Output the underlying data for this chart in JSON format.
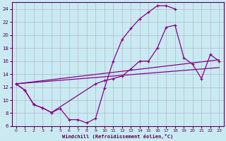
{
  "xlabel": "Windchill (Refroidissement éolien,°C)",
  "bg_color": "#caeaf2",
  "grid_color": "#b0b8cc",
  "line_color": "#880088",
  "xlim": [
    -0.5,
    23.5
  ],
  "ylim": [
    6,
    25
  ],
  "xticks": [
    0,
    1,
    2,
    3,
    4,
    5,
    6,
    7,
    8,
    9,
    10,
    11,
    12,
    13,
    14,
    15,
    16,
    17,
    18,
    19,
    20,
    21,
    22,
    23
  ],
  "yticks": [
    6,
    8,
    10,
    12,
    14,
    16,
    18,
    20,
    22,
    24
  ],
  "curve1_x": [
    0,
    1,
    2,
    3,
    4,
    5,
    6,
    7,
    8,
    9,
    10,
    11,
    12,
    13,
    14,
    15,
    16,
    17,
    18
  ],
  "curve1_y": [
    12.5,
    11.5,
    9.3,
    8.8,
    8.1,
    8.7,
    7.0,
    7.0,
    6.5,
    7.2,
    11.8,
    16.0,
    19.3,
    21.0,
    22.5,
    23.5,
    24.5,
    24.5,
    24.0
  ],
  "curve2_x": [
    0,
    1,
    2,
    3,
    4,
    9,
    10,
    11,
    12,
    13,
    14,
    15,
    16,
    17,
    18,
    19,
    20,
    21,
    22,
    23
  ],
  "curve2_y": [
    12.5,
    11.5,
    9.3,
    8.8,
    8.1,
    12.5,
    13.0,
    13.3,
    13.7,
    14.8,
    16.0,
    16.0,
    18.0,
    21.2,
    21.5,
    16.5,
    15.5,
    13.3,
    17.0,
    16.0
  ],
  "line1_x": [
    0,
    23
  ],
  "line1_y": [
    12.5,
    16.2
  ],
  "line2_x": [
    0,
    23
  ],
  "line2_y": [
    12.5,
    15.0
  ]
}
